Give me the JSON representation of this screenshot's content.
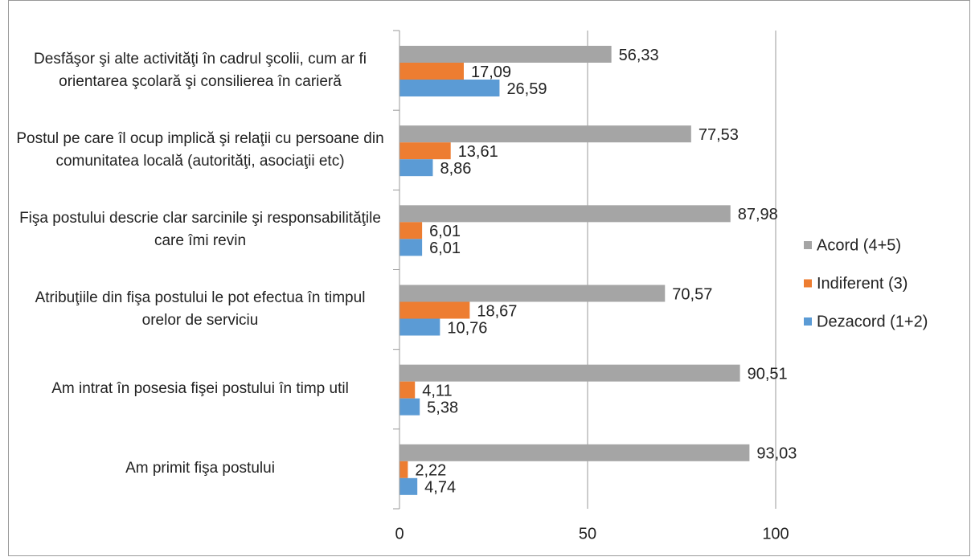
{
  "chart_data": {
    "type": "bar",
    "orientation": "horizontal",
    "categories": [
      "Desfăşor şi alte activităţi în cadrul şcolii, cum ar fi orientarea şcolară şi consilierea în carieră",
      "Postul pe care îl ocup implică şi relaţii cu persoane din comunitatea locală (autorităţi, asociaţii etc)",
      "Fişa postului descrie clar sarcinile şi responsabilităţile care îmi revin",
      "Atribuţiile din fişa postului le pot efectua în timpul orelor de serviciu",
      "Am intrat în posesia fişei postului în timp util",
      "Am primit  fişa postului"
    ],
    "series": [
      {
        "name": "Acord (4+5)",
        "color": "#a5a5a5",
        "values": [
          56.33,
          77.53,
          87.98,
          70.57,
          90.51,
          93.03
        ],
        "value_labels": [
          "56,33",
          "77,53",
          "87,98",
          "70,57",
          "90,51",
          "93,03"
        ]
      },
      {
        "name": "Indiferent (3)",
        "color": "#ed7d31",
        "values": [
          17.09,
          13.61,
          6.01,
          18.67,
          4.11,
          2.22
        ],
        "value_labels": [
          "17,09",
          "13,61",
          "6,01",
          "18,67",
          "4,11",
          "2,22"
        ]
      },
      {
        "name": "Dezacord (1+2)",
        "color": "#5b9bd5",
        "values": [
          26.59,
          8.86,
          6.01,
          10.76,
          5.38,
          4.74
        ],
        "value_labels": [
          "26,59",
          "8,86",
          "6,01",
          "10,76",
          "5,38",
          "4,74"
        ]
      }
    ],
    "xlim": [
      0,
      100
    ],
    "xticks": [
      0,
      50,
      100
    ],
    "grid": true,
    "legend": "right"
  }
}
